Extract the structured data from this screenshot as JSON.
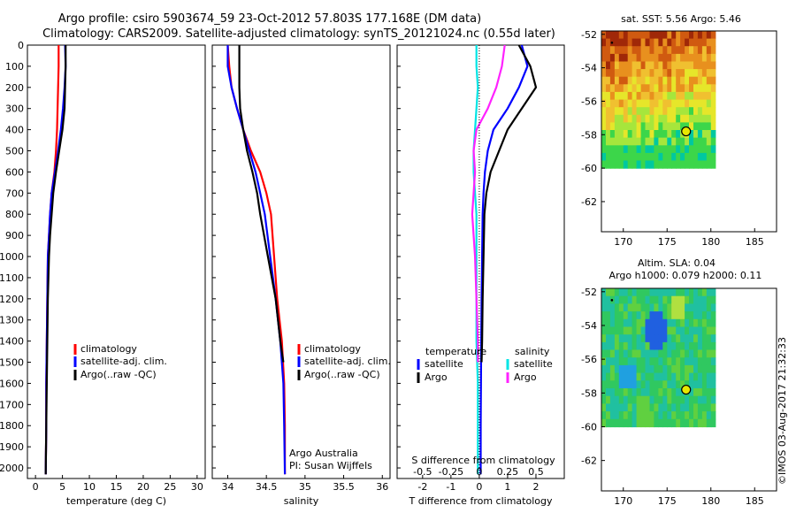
{
  "figure": {
    "title_line1": "Argo profile: csiro 5903674_59 23-Oct-2012 57.803S 177.168E (DM data)",
    "title_line2": "Climatology: CARS2009. Satellite-adjusted climatology: synTS_20121024.nc (0.55d later)",
    "credit": "©IMOS 03-Aug-2017 21:32:33"
  },
  "colors": {
    "climatology": "#ff0000",
    "satellite": "#0000ff",
    "argo": "#000000",
    "sal_satellite": "#00e5e5",
    "sal_argo": "#ff22ff"
  },
  "chart_data": [
    {
      "type": "line",
      "panel": "temperature",
      "xlabel": "temperature (deg C)",
      "ylabel": "",
      "xlim": [
        -1.5,
        31.5
      ],
      "ylim": [
        2050,
        0
      ],
      "xticks": [
        0,
        5,
        10,
        15,
        20,
        25,
        30
      ],
      "yticks": [
        0,
        100,
        200,
        300,
        400,
        500,
        600,
        700,
        800,
        900,
        1000,
        1100,
        1200,
        1300,
        1400,
        1500,
        1600,
        1700,
        1800,
        1900,
        2000
      ],
      "legend": [
        "climatology",
        "satellite-adj. clim.",
        "Argo(..raw -QC)"
      ],
      "series": [
        {
          "name": "climatology",
          "color": "#ff0000",
          "x": [
            4.3,
            4.3,
            4.2,
            4.1,
            4.0,
            3.8,
            3.5,
            3.0,
            2.7,
            2.5,
            2.3,
            2.2,
            2.1,
            2.0,
            2.0,
            1.9
          ],
          "y": [
            0,
            100,
            200,
            300,
            400,
            500,
            600,
            700,
            800,
            900,
            1000,
            1200,
            1400,
            1600,
            1800,
            2030
          ]
        },
        {
          "name": "satellite-adj. clim.",
          "color": "#0000ff",
          "x": [
            5.5,
            5.6,
            5.4,
            5.1,
            4.7,
            4.2,
            3.6,
            3.0,
            2.7,
            2.5,
            2.3,
            2.2,
            2.1,
            2.0,
            2.0,
            1.9
          ],
          "y": [
            0,
            100,
            200,
            300,
            400,
            500,
            600,
            700,
            800,
            900,
            1000,
            1200,
            1400,
            1600,
            1800,
            2030
          ]
        },
        {
          "name": "Argo(..raw -QC)",
          "color": "#000000",
          "x": [
            5.6,
            5.6,
            5.5,
            5.4,
            5.0,
            4.4,
            3.8,
            3.3,
            3.0,
            2.7,
            2.5,
            2.3,
            2.2,
            2.1,
            2.0,
            1.9
          ],
          "y": [
            0,
            100,
            200,
            300,
            400,
            500,
            600,
            700,
            800,
            900,
            1000,
            1200,
            1400,
            1600,
            1800,
            2030
          ]
        }
      ]
    },
    {
      "type": "line",
      "panel": "salinity",
      "xlabel": "salinity",
      "ylabel": "",
      "xlim": [
        33.8,
        36.1
      ],
      "ylim": [
        2050,
        0
      ],
      "xticks": [
        34,
        34.5,
        35,
        35.5,
        36
      ],
      "legend": [
        "climatology",
        "satellite-adj. clim.",
        "Argo(..raw -QC)"
      ],
      "annotation_line1": "Argo Australia",
      "annotation_line2": "PI: Susan Wijffels",
      "series": [
        {
          "name": "climatology",
          "color": "#ff0000",
          "x": [
            34.0,
            34.02,
            34.05,
            34.12,
            34.2,
            34.3,
            34.42,
            34.5,
            34.56,
            34.6,
            34.64,
            34.7,
            34.73,
            34.74,
            34.74
          ],
          "y": [
            0,
            100,
            200,
            300,
            400,
            500,
            600,
            700,
            800,
            1000,
            1200,
            1400,
            1600,
            1800,
            2030
          ]
        },
        {
          "name": "satellite-adj. clim.",
          "color": "#0000ff",
          "x": [
            34.0,
            34.0,
            34.05,
            34.12,
            34.2,
            34.28,
            34.36,
            34.42,
            34.48,
            34.55,
            34.62,
            34.68,
            34.72,
            34.73,
            34.74
          ],
          "y": [
            0,
            100,
            200,
            300,
            400,
            500,
            600,
            700,
            800,
            1000,
            1200,
            1400,
            1600,
            1800,
            2030
          ]
        },
        {
          "name": "Argo(..raw -QC)",
          "color": "#000000",
          "x": [
            34.15,
            34.15,
            34.15,
            34.16,
            34.2,
            34.25,
            34.32,
            34.38,
            34.42,
            34.52,
            34.62,
            34.68,
            34.72
          ],
          "y": [
            0,
            100,
            200,
            300,
            400,
            500,
            600,
            700,
            800,
            1000,
            1200,
            1400,
            1500
          ]
        }
      ]
    },
    {
      "type": "line",
      "panel": "difference",
      "xlabel": "T difference from climatology",
      "xlabel_top": "S difference from climatology",
      "xlim": [
        -2.9,
        3.0
      ],
      "ylim": [
        2050,
        0
      ],
      "xticks": [
        -2,
        -1,
        0,
        1,
        2
      ],
      "xticks_top_labels": [
        "-0.5",
        "-0.25",
        "0",
        "0.25",
        "0.5"
      ],
      "xticks_top_pos": [
        -2,
        -1,
        0,
        1,
        2
      ],
      "legend_title_left": "temperature",
      "legend_title_right": "salinity",
      "legend": [
        "satellite",
        "Argo",
        "satellite",
        "Argo"
      ],
      "series": [
        {
          "name": "temperature satellite",
          "color": "#0000ff",
          "x": [
            1.5,
            1.7,
            1.4,
            1.0,
            0.5,
            0.3,
            0.2,
            0.15,
            0.12,
            0.1,
            0.08,
            0.07,
            0.06,
            0.05,
            0.05
          ],
          "y": [
            0,
            100,
            200,
            300,
            400,
            500,
            600,
            700,
            800,
            1000,
            1200,
            1400,
            1600,
            1800,
            2030
          ]
        },
        {
          "name": "temperature Argo",
          "color": "#000000",
          "x": [
            1.4,
            1.8,
            2.0,
            1.5,
            1.0,
            0.7,
            0.4,
            0.25,
            0.18,
            0.15,
            0.12,
            0.1,
            0.08
          ],
          "y": [
            0,
            100,
            200,
            300,
            400,
            500,
            600,
            700,
            800,
            1000,
            1200,
            1400,
            1500
          ]
        },
        {
          "name": "salinity satellite",
          "color": "#00e5e5",
          "x": [
            -0.1,
            -0.1,
            -0.05,
            -0.1,
            -0.15,
            -0.2,
            -0.2,
            -0.15,
            -0.1,
            -0.1,
            -0.1,
            -0.1,
            -0.05,
            -0.05,
            -0.05
          ],
          "y": [
            0,
            100,
            200,
            300,
            400,
            500,
            600,
            700,
            800,
            1000,
            1200,
            1400,
            1600,
            1800,
            2030
          ]
        },
        {
          "name": "salinity Argo",
          "color": "#ff22ff",
          "x": [
            0.9,
            0.8,
            0.6,
            0.3,
            -0.1,
            -0.2,
            -0.15,
            -0.2,
            -0.25,
            -0.15,
            -0.1,
            -0.05,
            -0.05
          ],
          "y": [
            0,
            100,
            200,
            300,
            400,
            500,
            600,
            700,
            800,
            1000,
            1200,
            1400,
            1500
          ]
        }
      ]
    },
    {
      "type": "heatmap",
      "panel": "map-sst",
      "title": "sat. SST: 5.56 Argo: 5.46",
      "xlim": [
        167.5,
        187.5
      ],
      "ylim": [
        -63.8,
        -51.8
      ],
      "xticks": [
        170,
        175,
        180,
        185
      ],
      "yticks": [
        -52,
        -54,
        -56,
        -58,
        -60,
        -62
      ],
      "data_extent": {
        "lon": [
          167.5,
          180.5
        ],
        "lat": [
          -60.0,
          -51.8
        ]
      },
      "profile_location": {
        "lon": 177.168,
        "lat": -57.803
      }
    },
    {
      "type": "heatmap",
      "panel": "map-sla",
      "title_line1": "Altim. SLA: 0.04",
      "title_line2": "Argo h1000: 0.079 h2000: 0.11",
      "xlim": [
        167.5,
        187.5
      ],
      "ylim": [
        -63.8,
        -51.8
      ],
      "xticks": [
        170,
        175,
        180,
        185
      ],
      "yticks": [
        -52,
        -54,
        -56,
        -58,
        -60,
        -62
      ],
      "data_extent": {
        "lon": [
          167.5,
          180.5
        ],
        "lat": [
          -60.0,
          -51.8
        ]
      },
      "profile_location": {
        "lon": 177.168,
        "lat": -57.803
      }
    }
  ]
}
